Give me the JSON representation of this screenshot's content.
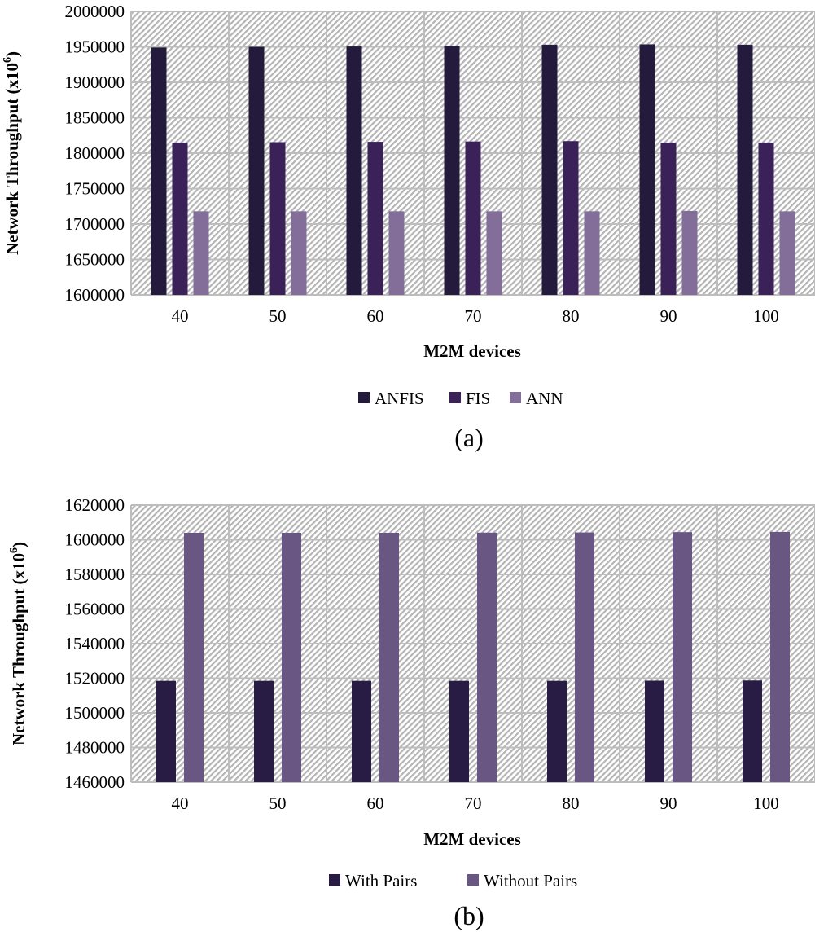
{
  "chart_data": [
    {
      "type": "bar",
      "caption": "(a)",
      "title": "",
      "xlabel": "M2M devices",
      "ylabel": "Network Throughput (x10",
      "ylabel_sup": "6",
      "ylabel_close": ")",
      "ylim": [
        1600000,
        2000000
      ],
      "ytick_step": 50000,
      "yticks": [
        "1600000",
        "1650000",
        "1700000",
        "1750000",
        "1800000",
        "1850000",
        "1900000",
        "1950000",
        "2000000"
      ],
      "categories": [
        "40",
        "50",
        "60",
        "70",
        "80",
        "90",
        "100"
      ],
      "grid": true,
      "legend_position": "bottom",
      "series": [
        {
          "name": "ANFIS",
          "color": "#241a3c",
          "values": [
            1949000,
            1950000,
            1950500,
            1951500,
            1953000,
            1953500,
            1953000
          ]
        },
        {
          "name": "FIS",
          "color": "#3a2158",
          "values": [
            1815000,
            1815500,
            1816000,
            1816500,
            1817000,
            1815000,
            1815000
          ]
        },
        {
          "name": "ANN",
          "color": "#826e99",
          "values": [
            1718000,
            1718000,
            1718000,
            1718000,
            1718000,
            1718500,
            1718000
          ]
        }
      ]
    },
    {
      "type": "bar",
      "caption": "(b)",
      "title": "",
      "xlabel": "M2M devices",
      "ylabel": "Network Throughput (x10",
      "ylabel_sup": "6",
      "ylabel_close": ")",
      "ylim": [
        1460000,
        1620000
      ],
      "ytick_step": 20000,
      "yticks": [
        "1460000",
        "1480000",
        "1500000",
        "1520000",
        "1540000",
        "1560000",
        "1580000",
        "1600000",
        "1620000"
      ],
      "categories": [
        "40",
        "50",
        "60",
        "70",
        "80",
        "90",
        "100"
      ],
      "grid": true,
      "legend_position": "bottom",
      "series": [
        {
          "name": "With Pairs",
          "color": "#281c44",
          "values": [
            1518500,
            1518500,
            1518500,
            1518500,
            1518500,
            1518600,
            1518700
          ]
        },
        {
          "name": "Without Pairs",
          "color": "#6a5683",
          "values": [
            1604000,
            1604000,
            1604000,
            1604100,
            1604200,
            1604400,
            1604500
          ]
        }
      ]
    }
  ]
}
